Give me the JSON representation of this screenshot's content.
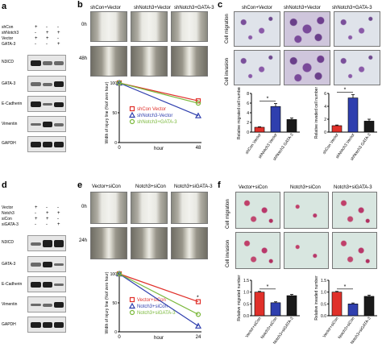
{
  "panels": {
    "a": {
      "label": "a",
      "treatments": [
        "shCon",
        "shNotch3",
        "Vector",
        "GATA-3"
      ],
      "signs": [
        [
          "+",
          "-",
          "-"
        ],
        [
          "-",
          "+",
          "+"
        ],
        [
          "+",
          "+",
          "-"
        ],
        [
          "-",
          "-",
          "+"
        ]
      ],
      "blots": [
        "N3ICD",
        "GATA-3",
        "E-Cadherin",
        "Vimentin",
        "GAPDH"
      ]
    },
    "b": {
      "label": "b",
      "columns": [
        "shCon+Vector",
        "shNotch3+Vector",
        "shNotch3+GATA-3"
      ],
      "rows": [
        "0h",
        "48h"
      ],
      "legend": [
        "shCon Vector",
        "shNotch3-Vector",
        "shNotch3+GATA-3"
      ]
    },
    "c": {
      "label": "c",
      "columns": [
        "shCon+Vector",
        "shNotch3+Vector",
        "shNotch3+GATA-3"
      ],
      "rows": [
        "Cell migration",
        "Cell invasion"
      ]
    },
    "d": {
      "label": "d",
      "treatments": [
        "Vector",
        "Notch3",
        "siCon",
        "siGATA-3"
      ],
      "signs": [
        [
          "+",
          "-",
          "-"
        ],
        [
          "-",
          "+",
          "+"
        ],
        [
          "+",
          "+",
          "-"
        ],
        [
          "-",
          "-",
          "+"
        ]
      ],
      "blots": [
        "N3ICD",
        "GATA-3",
        "E-Cadherin",
        "Vimentin",
        "GAPDH"
      ]
    },
    "e": {
      "label": "e",
      "columns": [
        "Vector+siCon",
        "Notch3+siCon",
        "Notch3+siGATA-3"
      ],
      "rows": [
        "0h",
        "24h"
      ],
      "legend": [
        "Vector+siCon",
        "Notch3+siCon",
        "Notch3+siGATA-3"
      ]
    },
    "f": {
      "label": "f",
      "columns": [
        "Vector+siCon",
        "Notch3+siCon",
        "Notch3+siGATA-3"
      ],
      "rows": [
        "Cell migration",
        "Cell invasion"
      ]
    }
  },
  "chart_data": [
    {
      "id": "b-line",
      "type": "line",
      "xlabel": "hour",
      "ylabel": "Width of injury line (%of zero hour)",
      "x": [
        0,
        48
      ],
      "xticks": [
        "0",
        "48"
      ],
      "yticks": [
        "0",
        "50",
        "100"
      ],
      "ylim": [
        0,
        100
      ],
      "series": [
        {
          "name": "shCon Vector",
          "color": "#e0302a",
          "marker": "square",
          "values": [
            100,
            70
          ]
        },
        {
          "name": "shNotch3-Vector",
          "color": "#2f3fae",
          "marker": "triangle",
          "values": [
            100,
            45
          ]
        },
        {
          "name": "shNotch3+GATA-3",
          "color": "#7ab83a",
          "marker": "circle",
          "values": [
            100,
            66
          ]
        }
      ]
    },
    {
      "id": "c-mig",
      "type": "bar",
      "ylabel": "Relative migrated cell number",
      "categories": [
        "shCon Vector",
        "shNotch3 Vector",
        "shNotch3 GATA-3"
      ],
      "values": [
        1.0,
        5.3,
        2.6
      ],
      "errors": [
        0.1,
        0.6,
        0.3
      ],
      "colors": [
        "#e0302a",
        "#2f3fae",
        "#1a1a1a"
      ],
      "ylim": [
        0,
        8
      ],
      "yticks": [
        "0",
        "2",
        "4",
        "6",
        "8"
      ],
      "sig": "*"
    },
    {
      "id": "c-inv",
      "type": "bar",
      "ylabel": "Relative invaded cell number",
      "categories": [
        "shCon Vector",
        "shNotch3 Vector",
        "shNotch3 GATA-3"
      ],
      "values": [
        1.0,
        5.3,
        1.7
      ],
      "errors": [
        0.1,
        0.5,
        0.3
      ],
      "colors": [
        "#e0302a",
        "#2f3fae",
        "#1a1a1a"
      ],
      "ylim": [
        0,
        6
      ],
      "yticks": [
        "0",
        "2",
        "4",
        "6"
      ],
      "sig": "*"
    },
    {
      "id": "e-line",
      "type": "line",
      "xlabel": "hour",
      "ylabel": "Width of injury line (%of zero hour)",
      "x": [
        0,
        24
      ],
      "xticks": [
        "0",
        "24"
      ],
      "yticks": [
        "0",
        "50",
        "100"
      ],
      "ylim": [
        0,
        100
      ],
      "sig": "*",
      "series": [
        {
          "name": "Vector+siCon",
          "color": "#e0302a",
          "marker": "square",
          "values": [
            100,
            52
          ]
        },
        {
          "name": "Notch3+siCon",
          "color": "#2f3fae",
          "marker": "triangle",
          "values": [
            100,
            10
          ]
        },
        {
          "name": "Notch3+siGATA-3",
          "color": "#7ab83a",
          "marker": "circle",
          "values": [
            100,
            30
          ]
        }
      ]
    },
    {
      "id": "f-mig",
      "type": "bar",
      "ylabel": "Relative migrated number",
      "categories": [
        "Vector+siCon",
        "Notch3+siCon",
        "Notch3+siGATA-3"
      ],
      "values": [
        1.0,
        0.55,
        0.85
      ],
      "errors": [
        0.03,
        0.04,
        0.05
      ],
      "colors": [
        "#e0302a",
        "#2f3fae",
        "#1a1a1a"
      ],
      "ylim": [
        0,
        1.5
      ],
      "yticks": [
        "0.0",
        "0.5",
        "1.0",
        "1.5"
      ],
      "sig": "*"
    },
    {
      "id": "f-inv",
      "type": "bar",
      "ylabel": "Relative invaded number",
      "categories": [
        "Vector+siCon",
        "Notch3+siCon",
        "Notch3+siGATA-3"
      ],
      "values": [
        1.0,
        0.5,
        0.82
      ],
      "errors": [
        0.03,
        0.04,
        0.05
      ],
      "colors": [
        "#e0302a",
        "#2f3fae",
        "#1a1a1a"
      ],
      "ylim": [
        0,
        1.5
      ],
      "yticks": [
        "0.0",
        "0.5",
        "1.0",
        "1.5"
      ],
      "sig": "*"
    }
  ]
}
